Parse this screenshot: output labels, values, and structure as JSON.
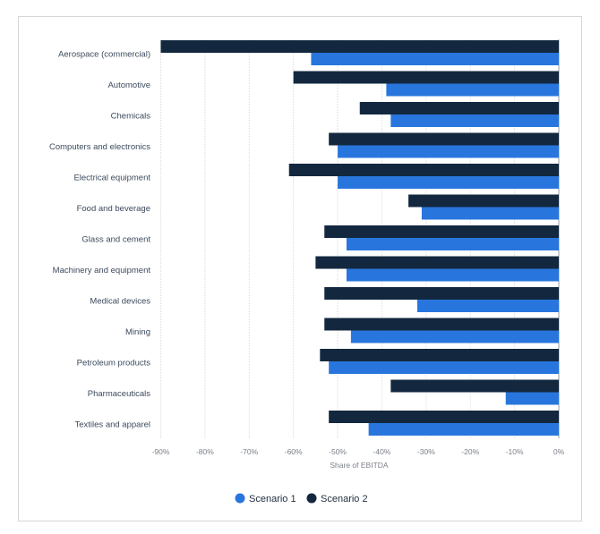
{
  "chart_data": {
    "type": "bar",
    "orientation": "horizontal",
    "title": "",
    "xlabel": "Share of EBITDA",
    "ylabel": "",
    "xlim": [
      -90,
      0
    ],
    "x_ticks": [
      "-90%",
      "-80%",
      "-70%",
      "-60%",
      "-50%",
      "-40%",
      "-30%",
      "-20%",
      "-10%",
      "0%"
    ],
    "x_tick_values": [
      -90,
      -80,
      -70,
      -60,
      -50,
      -40,
      -30,
      -20,
      -10,
      0
    ],
    "grid": true,
    "legend_position": "bottom",
    "categories": [
      "Aerospace (commercial)",
      "Automotive",
      "Chemicals",
      "Computers and electronics",
      "Electrical equipment",
      "Food and beverage",
      "Glass and cement",
      "Machinery and equipment",
      "Medical devices",
      "Mining",
      "Petroleum products",
      "Pharmaceuticals",
      "Textiles and apparel"
    ],
    "series": [
      {
        "name": "Scenario 1",
        "color": "#2876dd",
        "values": [
          -56,
          -39,
          -38,
          -50,
          -50,
          -31,
          -48,
          -48,
          -32,
          -47,
          -52,
          -12,
          -43
        ]
      },
      {
        "name": "Scenario 2",
        "color": "#13283f",
        "values": [
          -90,
          -60,
          -45,
          -52,
          -61,
          -34,
          -53,
          -55,
          -53,
          -53,
          -54,
          -38,
          -52
        ]
      }
    ]
  }
}
